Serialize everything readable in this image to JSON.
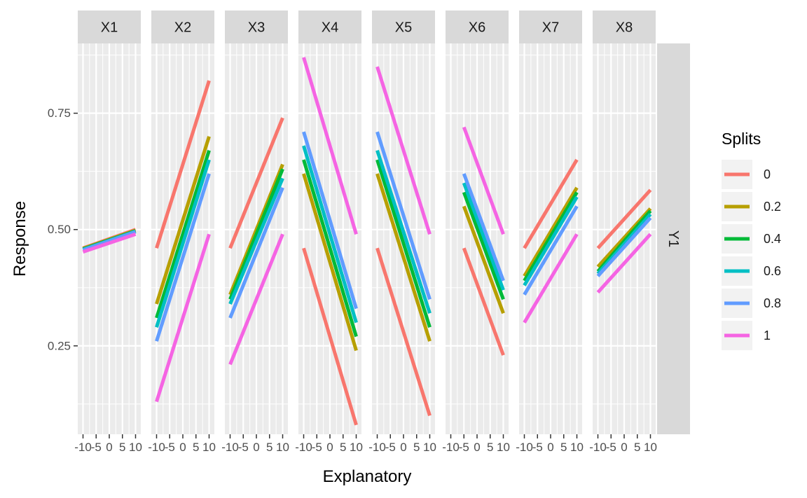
{
  "chart_data": {
    "type": "line",
    "xlabel": "Explanatory",
    "ylabel": "Response",
    "ylim": [
      0.06,
      0.9
    ],
    "y_ticks": [
      0.25,
      0.5,
      0.75
    ],
    "y_tick_labels": [
      "0.25",
      "0.50",
      "0.75"
    ],
    "row_strip": "Y1",
    "legend": {
      "title": "Splits",
      "position": "right",
      "items": [
        {
          "label": "0",
          "color": "#F8766D"
        },
        {
          "label": "0.2",
          "color": "#B79F00"
        },
        {
          "label": "0.4",
          "color": "#00BA38"
        },
        {
          "label": "0.6",
          "color": "#00BFC4"
        },
        {
          "label": "0.8",
          "color": "#619CFF"
        },
        {
          "label": "1",
          "color": "#F564E3"
        }
      ]
    },
    "panels": [
      {
        "name": "X1",
        "xlim": [
          -12,
          12
        ],
        "x_ticks": [
          -10,
          -5,
          0,
          5,
          10
        ],
        "x_tick_labels": [
          "-10",
          "-5",
          "0",
          "5",
          "10"
        ],
        "series": [
          {
            "split": "0",
            "x": [
              -10,
              10
            ],
            "y": [
              0.46,
              0.5
            ]
          },
          {
            "split": "0.2",
            "x": [
              -10,
              10
            ],
            "y": [
              0.459,
              0.498
            ]
          },
          {
            "split": "0.4",
            "x": [
              -10,
              10
            ],
            "y": [
              0.458,
              0.497
            ]
          },
          {
            "split": "0.6",
            "x": [
              -10,
              10
            ],
            "y": [
              0.457,
              0.496
            ]
          },
          {
            "split": "0.8",
            "x": [
              -10,
              10
            ],
            "y": [
              0.456,
              0.495
            ]
          },
          {
            "split": "1",
            "x": [
              -10,
              10
            ],
            "y": [
              0.452,
              0.49
            ]
          }
        ]
      },
      {
        "name": "X2",
        "xlim": [
          -12,
          12
        ],
        "x_ticks": [
          -10,
          -5,
          0,
          5,
          10
        ],
        "x_tick_labels": [
          "-10",
          "-5",
          "0",
          "5",
          "10"
        ],
        "series": [
          {
            "split": "0",
            "x": [
              -10,
              10
            ],
            "y": [
              0.46,
              0.82
            ]
          },
          {
            "split": "0.2",
            "x": [
              -10,
              10
            ],
            "y": [
              0.34,
              0.7
            ]
          },
          {
            "split": "0.4",
            "x": [
              -10,
              10
            ],
            "y": [
              0.31,
              0.67
            ]
          },
          {
            "split": "0.6",
            "x": [
              -10,
              10
            ],
            "y": [
              0.29,
              0.65
            ]
          },
          {
            "split": "0.8",
            "x": [
              -10,
              10
            ],
            "y": [
              0.26,
              0.62
            ]
          },
          {
            "split": "1",
            "x": [
              -10,
              10
            ],
            "y": [
              0.13,
              0.49
            ]
          }
        ]
      },
      {
        "name": "X3",
        "xlim": [
          -12,
          12
        ],
        "x_ticks": [
          -10,
          -5,
          0,
          5,
          10
        ],
        "x_tick_labels": [
          "-10",
          "-5",
          "0",
          "5",
          "10"
        ],
        "series": [
          {
            "split": "0",
            "x": [
              -10,
              10
            ],
            "y": [
              0.46,
              0.74
            ]
          },
          {
            "split": "0.2",
            "x": [
              -10,
              10
            ],
            "y": [
              0.36,
              0.64
            ]
          },
          {
            "split": "0.4",
            "x": [
              -10,
              10
            ],
            "y": [
              0.35,
              0.63
            ]
          },
          {
            "split": "0.6",
            "x": [
              -10,
              10
            ],
            "y": [
              0.34,
              0.61
            ]
          },
          {
            "split": "0.8",
            "x": [
              -10,
              10
            ],
            "y": [
              0.31,
              0.59
            ]
          },
          {
            "split": "1",
            "x": [
              -10,
              10
            ],
            "y": [
              0.21,
              0.49
            ]
          }
        ]
      },
      {
        "name": "X4",
        "xlim": [
          -12,
          12
        ],
        "x_ticks": [
          -10,
          -5,
          0,
          5,
          10
        ],
        "x_tick_labels": [
          "-10",
          "-5",
          "0",
          "5",
          "10"
        ],
        "series": [
          {
            "split": "0",
            "x": [
              -10,
              10
            ],
            "y": [
              0.46,
              0.08
            ]
          },
          {
            "split": "0.2",
            "x": [
              -10,
              10
            ],
            "y": [
              0.62,
              0.24
            ]
          },
          {
            "split": "0.4",
            "x": [
              -10,
              10
            ],
            "y": [
              0.65,
              0.27
            ]
          },
          {
            "split": "0.6",
            "x": [
              -10,
              10
            ],
            "y": [
              0.68,
              0.3
            ]
          },
          {
            "split": "0.8",
            "x": [
              -10,
              10
            ],
            "y": [
              0.71,
              0.33
            ]
          },
          {
            "split": "1",
            "x": [
              -10,
              10
            ],
            "y": [
              0.87,
              0.49
            ]
          }
        ]
      },
      {
        "name": "X5",
        "xlim": [
          -12,
          12
        ],
        "x_ticks": [
          -10,
          -5,
          0,
          5,
          10
        ],
        "x_tick_labels": [
          "-10",
          "-5",
          "0",
          "5",
          "10"
        ],
        "series": [
          {
            "split": "0",
            "x": [
              -10,
              10
            ],
            "y": [
              0.46,
              0.1
            ]
          },
          {
            "split": "0.2",
            "x": [
              -10,
              10
            ],
            "y": [
              0.62,
              0.26
            ]
          },
          {
            "split": "0.4",
            "x": [
              -10,
              10
            ],
            "y": [
              0.65,
              0.29
            ]
          },
          {
            "split": "0.6",
            "x": [
              -10,
              10
            ],
            "y": [
              0.67,
              0.32
            ]
          },
          {
            "split": "0.8",
            "x": [
              -10,
              10
            ],
            "y": [
              0.71,
              0.35
            ]
          },
          {
            "split": "1",
            "x": [
              -10,
              10
            ],
            "y": [
              0.85,
              0.49
            ]
          }
        ]
      },
      {
        "name": "X6",
        "xlim": [
          -12,
          12
        ],
        "x_ticks": [
          -10,
          -5,
          0,
          5,
          10
        ],
        "x_tick_labels": [
          "-10",
          "-5",
          "0",
          "5",
          "10"
        ],
        "series": [
          {
            "split": "0",
            "x": [
              -5,
              10
            ],
            "y": [
              0.46,
              0.23
            ]
          },
          {
            "split": "0.2",
            "x": [
              -5,
              10
            ],
            "y": [
              0.55,
              0.32
            ]
          },
          {
            "split": "0.4",
            "x": [
              -5,
              10
            ],
            "y": [
              0.58,
              0.35
            ]
          },
          {
            "split": "0.6",
            "x": [
              -5,
              10
            ],
            "y": [
              0.6,
              0.37
            ]
          },
          {
            "split": "0.8",
            "x": [
              -5,
              10
            ],
            "y": [
              0.62,
              0.39
            ]
          },
          {
            "split": "1",
            "x": [
              -5,
              10
            ],
            "y": [
              0.72,
              0.49
            ]
          }
        ]
      },
      {
        "name": "X7",
        "xlim": [
          -12,
          12
        ],
        "x_ticks": [
          -10,
          -5,
          0,
          5,
          10
        ],
        "x_tick_labels": [
          "-10",
          "-5",
          "0",
          "5",
          "10"
        ],
        "series": [
          {
            "split": "0",
            "x": [
              -10,
              10
            ],
            "y": [
              0.46,
              0.65
            ]
          },
          {
            "split": "0.2",
            "x": [
              -10,
              10
            ],
            "y": [
              0.4,
              0.59
            ]
          },
          {
            "split": "0.4",
            "x": [
              -10,
              10
            ],
            "y": [
              0.39,
              0.58
            ]
          },
          {
            "split": "0.6",
            "x": [
              -10,
              10
            ],
            "y": [
              0.38,
              0.57
            ]
          },
          {
            "split": "0.8",
            "x": [
              -10,
              10
            ],
            "y": [
              0.36,
              0.55
            ]
          },
          {
            "split": "1",
            "x": [
              -10,
              10
            ],
            "y": [
              0.3,
              0.49
            ]
          }
        ]
      },
      {
        "name": "X8",
        "xlim": [
          -12,
          12
        ],
        "x_ticks": [
          -10,
          -5,
          0,
          5,
          10
        ],
        "x_tick_labels": [
          "-10",
          "-5",
          "0",
          "5",
          "10"
        ],
        "series": [
          {
            "split": "0",
            "x": [
              -10,
              10
            ],
            "y": [
              0.46,
              0.585
            ]
          },
          {
            "split": "0.2",
            "x": [
              -10,
              10
            ],
            "y": [
              0.42,
              0.545
            ]
          },
          {
            "split": "0.4",
            "x": [
              -10,
              10
            ],
            "y": [
              0.41,
              0.54
            ]
          },
          {
            "split": "0.6",
            "x": [
              -10,
              10
            ],
            "y": [
              0.405,
              0.533
            ]
          },
          {
            "split": "0.8",
            "x": [
              -10,
              10
            ],
            "y": [
              0.4,
              0.525
            ]
          },
          {
            "split": "1",
            "x": [
              -10,
              10
            ],
            "y": [
              0.365,
              0.49
            ]
          }
        ]
      }
    ]
  }
}
